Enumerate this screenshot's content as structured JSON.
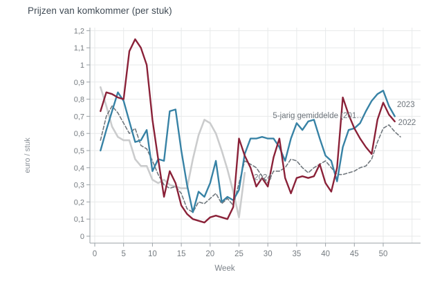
{
  "chart_data": {
    "type": "line",
    "title": "Prijzen van komkommer (per stuk)",
    "xlabel": "Week",
    "ylabel": "euro / stuk",
    "x_range": [
      0,
      55
    ],
    "y_range": [
      0,
      1.2
    ],
    "grid": true,
    "x_tick_values": [
      0,
      5,
      10,
      15,
      20,
      25,
      30,
      35,
      40,
      45,
      50
    ],
    "x_tick_labels": [
      "0",
      "5",
      "10",
      "15",
      "20",
      "25",
      "30",
      "35",
      "40",
      "45",
      "50"
    ],
    "grid_weeks": [
      0,
      5,
      10,
      15,
      20,
      25,
      30,
      35,
      40,
      45,
      50,
      55
    ],
    "y_tick_values": [
      0,
      0.1,
      0.2,
      0.3,
      0.4,
      0.5,
      0.6,
      0.7,
      0.8,
      0.9,
      1.0,
      1.1,
      1.2
    ],
    "y_tick_labels": [
      "0",
      "0,1",
      "0,2",
      "0,3",
      "0,4",
      "0,5",
      "0,6",
      "0,7",
      "0,8",
      "0,9",
      "1",
      "1,1",
      "1,2"
    ],
    "series": [
      {
        "name": "2024",
        "color": "#cbcccd",
        "style": "solid",
        "width": 2.6,
        "start_week": 1,
        "values": [
          0.87,
          0.76,
          0.64,
          0.58,
          0.56,
          0.56,
          0.45,
          0.41,
          0.41,
          0.33,
          0.31,
          0.33,
          0.3,
          0.29,
          0.28,
          0.28,
          0.45,
          0.59,
          0.68,
          0.66,
          0.6,
          0.5,
          0.39,
          0.26,
          0.11,
          0.37
        ]
      },
      {
        "name": "5-jarig gemiddelde (201…",
        "color": "#70777d",
        "style": "dashed",
        "width": 1.6,
        "start_week": 1,
        "values": [
          0.56,
          0.7,
          0.76,
          0.72,
          0.66,
          0.6,
          0.63,
          0.53,
          0.51,
          0.44,
          0.36,
          0.3,
          0.28,
          0.29,
          0.25,
          0.16,
          0.14,
          0.2,
          0.19,
          0.22,
          0.25,
          0.19,
          0.22,
          0.18,
          0.31,
          0.44,
          0.42,
          0.4,
          0.35,
          0.31,
          0.38,
          0.38,
          0.4,
          0.45,
          0.44,
          0.4,
          0.37,
          0.4,
          0.42,
          0.44,
          0.4,
          0.36,
          0.36,
          0.37,
          0.38,
          0.4,
          0.41,
          0.45,
          0.55,
          0.63,
          0.65,
          0.61,
          0.58
        ]
      },
      {
        "name": "2023",
        "color": "#3782a5",
        "style": "solid",
        "width": 2.4,
        "start_week": 1,
        "values": [
          0.5,
          0.62,
          0.73,
          0.84,
          0.79,
          0.67,
          0.55,
          0.56,
          0.62,
          0.38,
          0.45,
          0.44,
          0.73,
          0.74,
          0.5,
          0.3,
          0.14,
          0.26,
          0.23,
          0.31,
          0.44,
          0.2,
          0.23,
          0.21,
          0.27,
          0.48,
          0.57,
          0.57,
          0.58,
          0.57,
          0.57,
          0.52,
          0.44,
          0.57,
          0.66,
          0.62,
          0.67,
          0.68,
          0.57,
          0.47,
          0.44,
          0.32,
          0.52,
          0.62,
          0.63,
          0.66,
          0.73,
          0.79,
          0.83,
          0.85,
          0.76,
          0.7
        ]
      },
      {
        "name": "2022",
        "color": "#8a2138",
        "style": "solid",
        "width": 2.4,
        "start_week": 1,
        "values": [
          0.73,
          0.84,
          0.83,
          0.81,
          0.8,
          1.08,
          1.15,
          1.1,
          1.0,
          0.68,
          0.45,
          0.23,
          0.38,
          0.31,
          0.18,
          0.13,
          0.1,
          0.09,
          0.08,
          0.11,
          0.12,
          0.11,
          0.1,
          0.17,
          0.57,
          0.47,
          0.4,
          0.29,
          0.34,
          0.29,
          0.46,
          0.57,
          0.34,
          0.25,
          0.34,
          0.35,
          0.34,
          0.35,
          0.42,
          0.31,
          0.26,
          0.4,
          0.81,
          0.71,
          0.63,
          0.57,
          0.52,
          0.48,
          0.68,
          0.78,
          0.71,
          0.67
        ]
      }
    ],
    "annotations": [
      {
        "name": "series-label-5yr",
        "text": "5-jarig gemiddelde (201…",
        "week": 38.8,
        "value": 0.705,
        "anchor": "middle"
      },
      {
        "name": "series-label-2023",
        "text": "2023",
        "week": 52.4,
        "value": 0.77,
        "anchor": "start"
      },
      {
        "name": "series-label-2022",
        "text": "2022",
        "week": 52.6,
        "value": 0.665,
        "anchor": "start"
      },
      {
        "name": "series-label-2024",
        "text": "2024",
        "week": 27.6,
        "value": 0.345,
        "anchor": "start"
      }
    ],
    "colors": {
      "grid": "#e7e9ea",
      "axis_line": "#9aa0a5",
      "tick_text": "#757b80",
      "annotation_text": "#6d747b",
      "title_text": "#3f4a54"
    }
  }
}
